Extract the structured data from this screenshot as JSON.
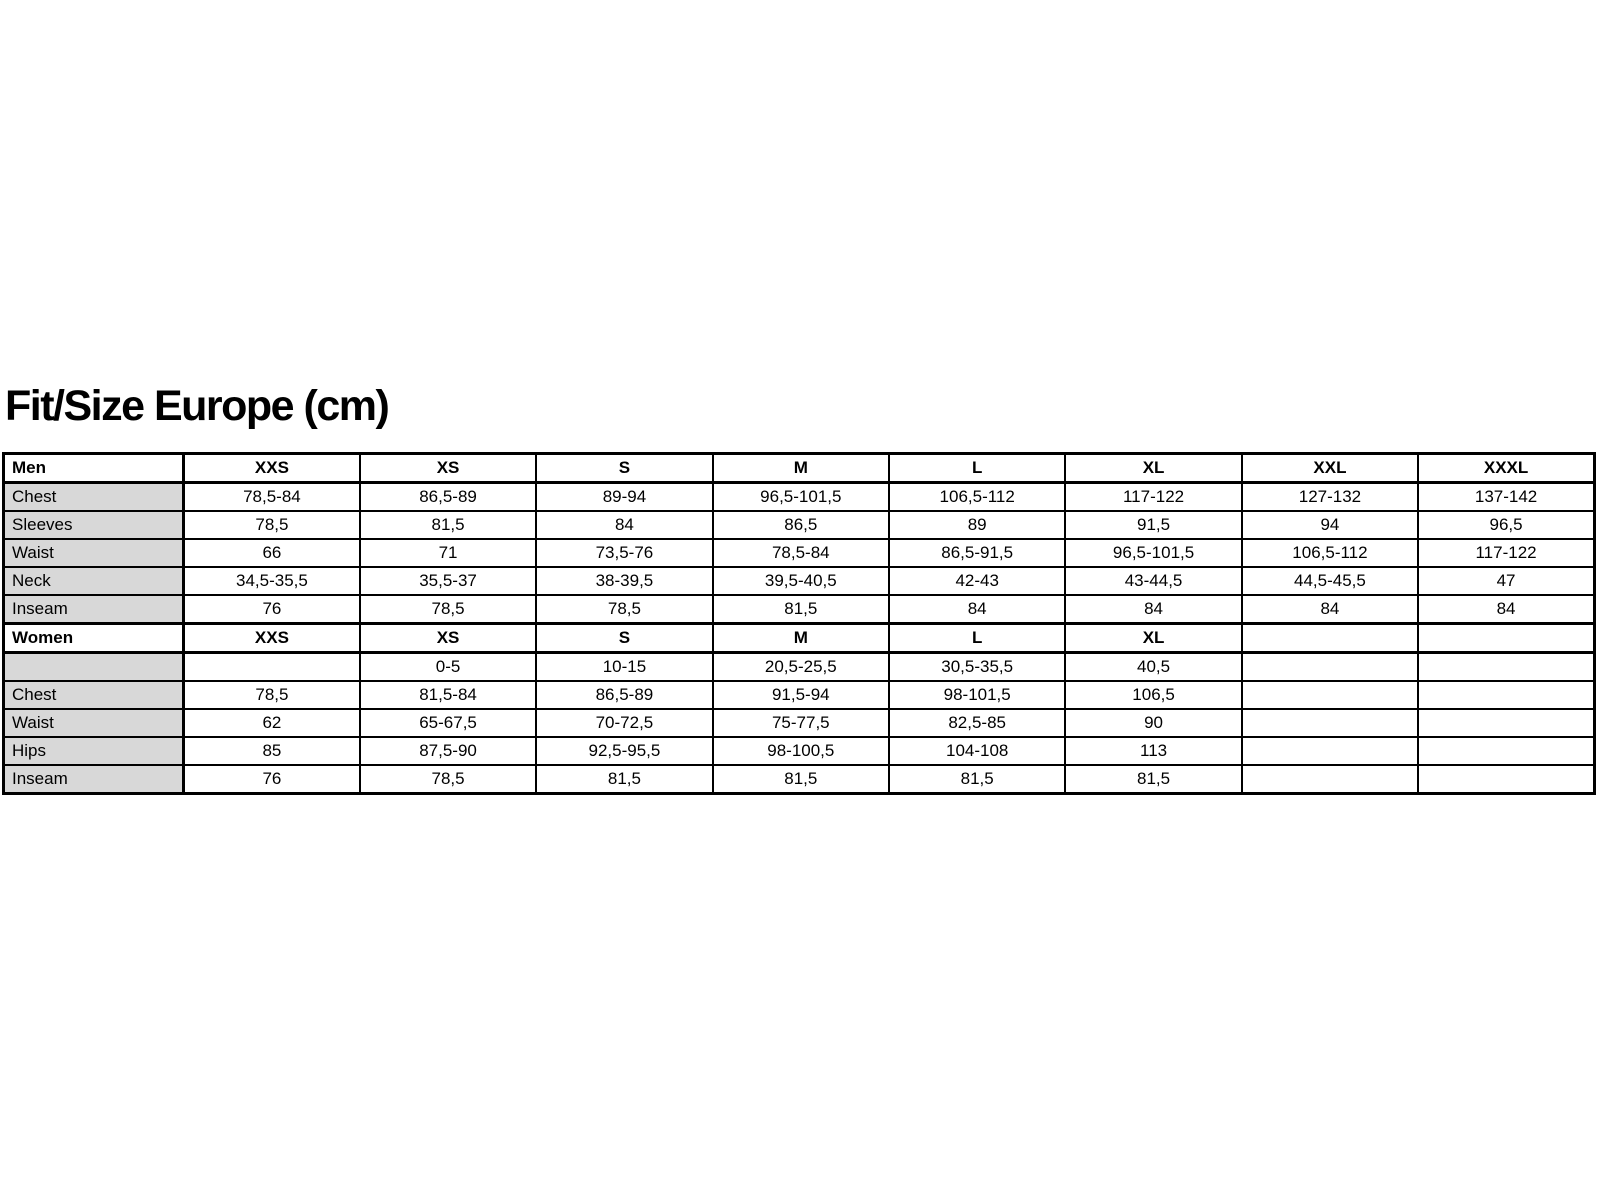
{
  "title": "Fit/Size Europe (cm)",
  "colors": {
    "background": "#ffffff",
    "label_cell_bg": "#d8d8d8",
    "border": "#000000",
    "text": "#000000"
  },
  "table": {
    "men": {
      "header": [
        "Men",
        "XXS",
        "XS",
        "S",
        "M",
        "L",
        "XL",
        "XXL",
        "XXXL"
      ],
      "rows": [
        {
          "label": "Chest",
          "values": [
            "78,5-84",
            "86,5-89",
            "89-94",
            "96,5-101,5",
            "106,5-112",
            "117-122",
            "127-132",
            "137-142"
          ]
        },
        {
          "label": "Sleeves",
          "values": [
            "78,5",
            "81,5",
            "84",
            "86,5",
            "89",
            "91,5",
            "94",
            "96,5"
          ]
        },
        {
          "label": "Waist",
          "values": [
            "66",
            "71",
            "73,5-76",
            "78,5-84",
            "86,5-91,5",
            "96,5-101,5",
            "106,5-112",
            "117-122"
          ]
        },
        {
          "label": "Neck",
          "values": [
            "34,5-35,5",
            "35,5-37",
            "38-39,5",
            "39,5-40,5",
            "42-43",
            "43-44,5",
            "44,5-45,5",
            "47"
          ]
        },
        {
          "label": "Inseam",
          "values": [
            "76",
            "78,5",
            "78,5",
            "81,5",
            "84",
            "84",
            "84",
            "84"
          ]
        }
      ]
    },
    "women": {
      "header": [
        "Women",
        "XXS",
        "XS",
        "S",
        "M",
        "L",
        "XL",
        "",
        ""
      ],
      "rows": [
        {
          "label": "",
          "values": [
            "",
            "0-5",
            "10-15",
            "20,5-25,5",
            "30,5-35,5",
            "40,5",
            "",
            ""
          ]
        },
        {
          "label": "Chest",
          "values": [
            "78,5",
            "81,5-84",
            "86,5-89",
            "91,5-94",
            "98-101,5",
            "106,5",
            "",
            ""
          ]
        },
        {
          "label": "Waist",
          "values": [
            "62",
            "65-67,5",
            "70-72,5",
            "75-77,5",
            "82,5-85",
            "90",
            "",
            ""
          ]
        },
        {
          "label": "Hips",
          "values": [
            "85",
            "87,5-90",
            "92,5-95,5",
            "98-100,5",
            "104-108",
            "113",
            "",
            ""
          ]
        },
        {
          "label": "Inseam",
          "values": [
            "76",
            "78,5",
            "81,5",
            "81,5",
            "81,5",
            "81,5",
            "",
            ""
          ]
        }
      ]
    }
  }
}
